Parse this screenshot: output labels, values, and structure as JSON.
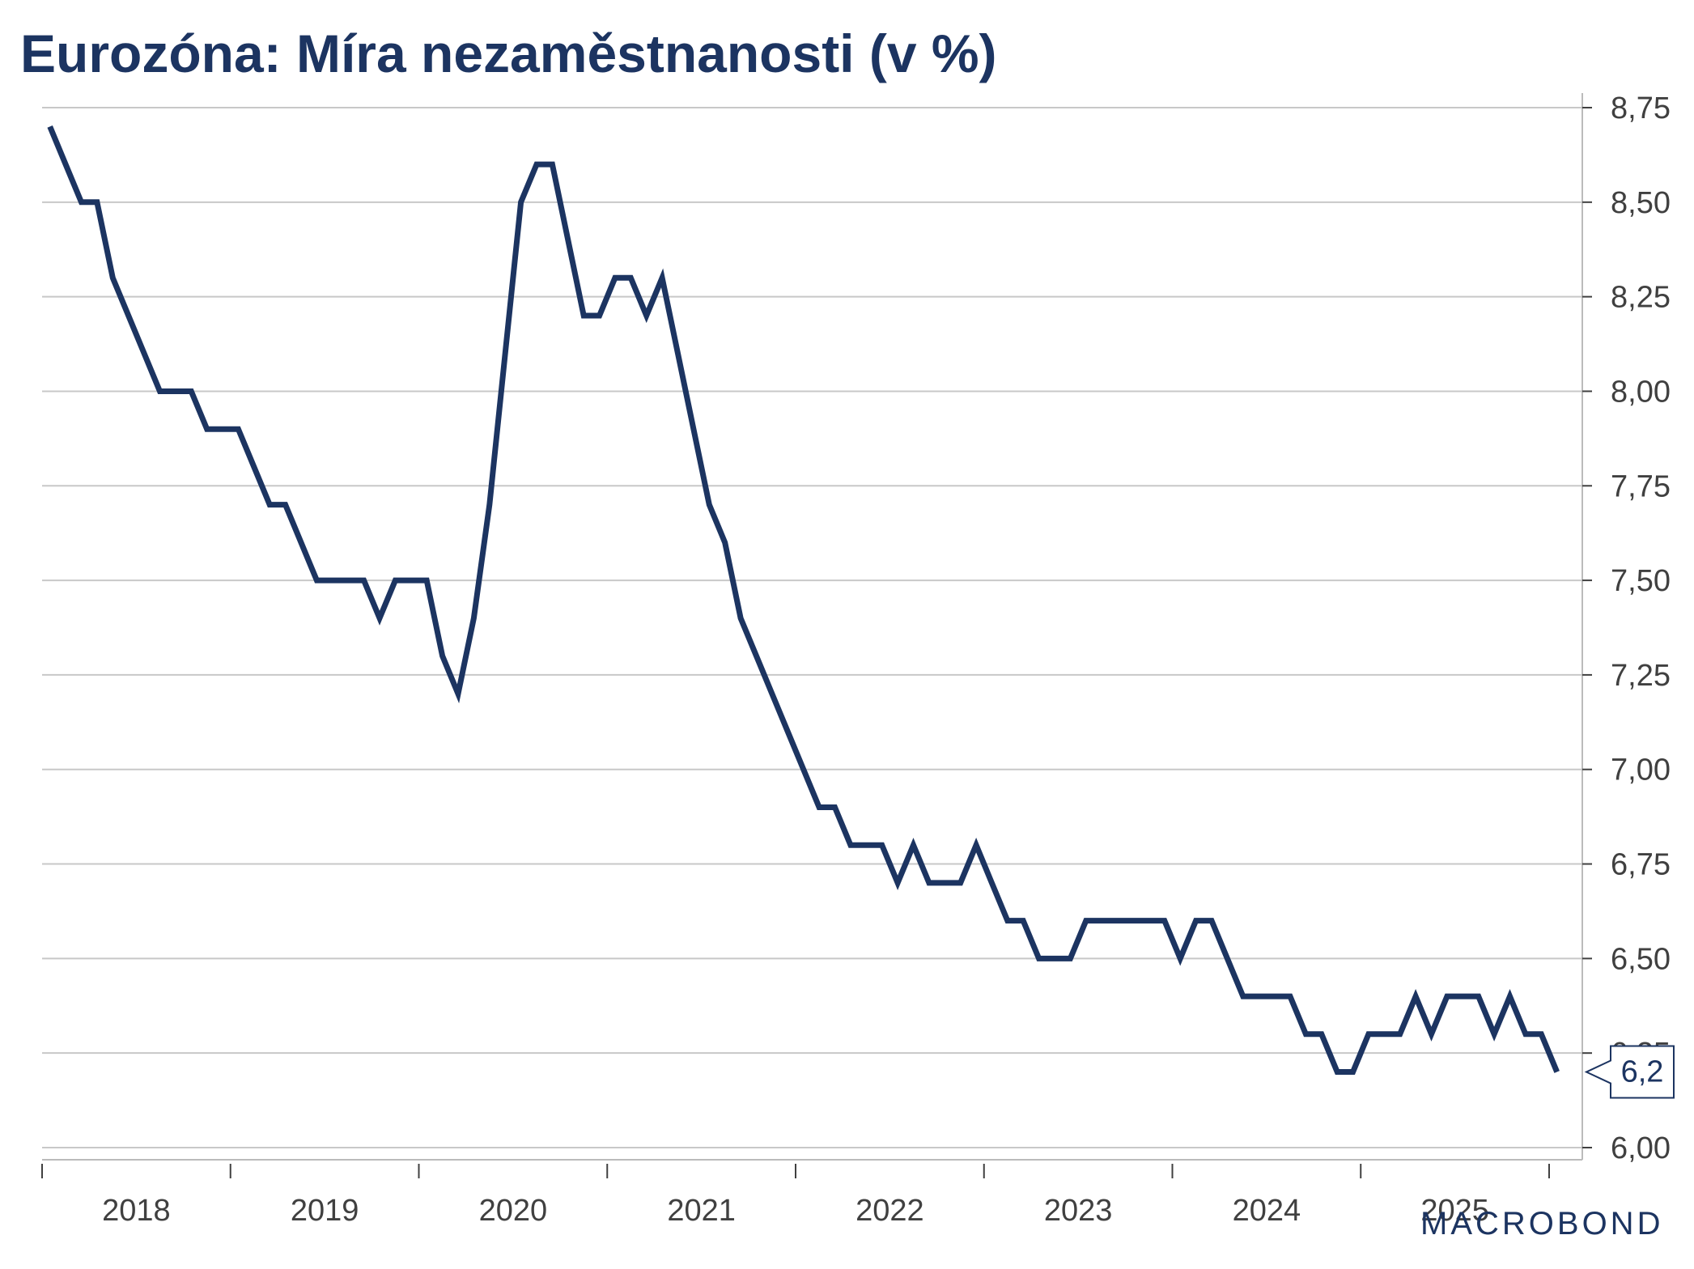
{
  "title": "Eurozóna: Míra nezaměstnanosti (v %)",
  "logo": "MACROBOND",
  "colors": {
    "line": "#1c3461",
    "grid": "#c8c8c8",
    "axis": "#404040",
    "text": "#1c3461"
  },
  "chart_data": {
    "type": "line",
    "title": "Eurozóna: Míra nezaměstnanosti (v %)",
    "xlabel": "",
    "ylabel": "",
    "x_start": "2018-01",
    "x_range": [
      "2018-01",
      "2025-12"
    ],
    "y_axis_position": "right",
    "ylim": [
      6.0,
      8.75
    ],
    "yticks": [
      6.0,
      6.25,
      6.5,
      6.75,
      7.0,
      7.25,
      7.5,
      7.75,
      8.0,
      8.25,
      8.5,
      8.75
    ],
    "ytick_labels": [
      "6,00",
      "6,25",
      "6,50",
      "6,75",
      "7,00",
      "7,25",
      "7,50",
      "7,75",
      "8,00",
      "8,25",
      "8,50",
      "8,75"
    ],
    "xtick_labels": [
      "2018",
      "2019",
      "2020",
      "2021",
      "2022",
      "2023",
      "2024",
      "2025"
    ],
    "grid": true,
    "last_value_label": "6,2",
    "series": [
      {
        "values": [
          8.7,
          8.6,
          8.5,
          8.5,
          8.3,
          8.2,
          8.1,
          8.0,
          8.0,
          8.0,
          7.9,
          7.9,
          7.9,
          7.8,
          7.7,
          7.7,
          7.6,
          7.5,
          7.5,
          7.5,
          7.5,
          7.4,
          7.5,
          7.5,
          7.5,
          7.3,
          7.2,
          7.4,
          7.7,
          8.1,
          8.5,
          8.6,
          8.6,
          8.4,
          8.2,
          8.2,
          8.3,
          8.3,
          8.2,
          8.3,
          8.1,
          7.9,
          7.7,
          7.6,
          7.4,
          7.3,
          7.2,
          7.1,
          7.0,
          6.9,
          6.9,
          6.8,
          6.8,
          6.8,
          6.7,
          6.8,
          6.7,
          6.7,
          6.7,
          6.8,
          6.7,
          6.6,
          6.6,
          6.5,
          6.5,
          6.5,
          6.6,
          6.6,
          6.6,
          6.6,
          6.6,
          6.6,
          6.5,
          6.6,
          6.6,
          6.5,
          6.4,
          6.4,
          6.4,
          6.4,
          6.3,
          6.3,
          6.2,
          6.2,
          6.3,
          6.3,
          6.3,
          6.4,
          6.3,
          6.4,
          6.4,
          6.4,
          6.3,
          6.4,
          6.3,
          6.3,
          6.2
        ]
      }
    ]
  }
}
